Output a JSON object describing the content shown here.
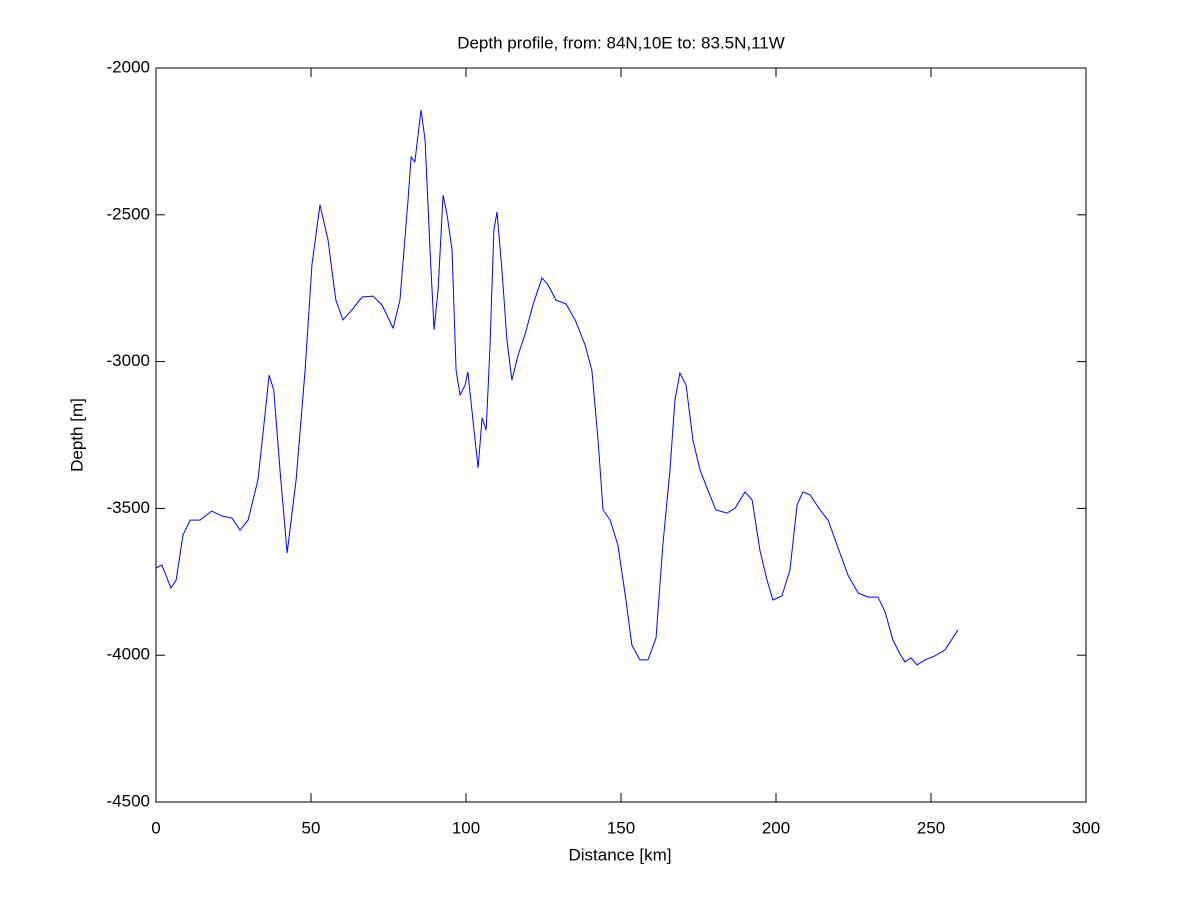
{
  "chart_data": {
    "type": "line",
    "title": "Depth profile, from: 84N,10E to: 83.5N,11W",
    "x_label": "Distance [km]",
    "y_label": "Depth [m]",
    "xlim": [
      0,
      300
    ],
    "xticks": [
      0,
      50,
      100,
      150,
      200,
      250,
      300
    ],
    "ylim": [
      -4500,
      -2000
    ],
    "yticks": [
      -4500,
      -4000,
      -3500,
      -3000,
      -2500,
      -2000
    ],
    "grid": false,
    "series": [
      {
        "name": "Depth",
        "color": "#0000ff",
        "x": [
          0,
          1.9,
          3.2,
          4.8,
          6.5,
          8.7,
          11,
          14.2,
          18,
          21.3,
          24.5,
          27.1,
          29.7,
          32.9,
          34.8,
          36.5,
          38,
          40,
          42.3,
          45.2,
          48.1,
          50.3,
          52.9,
          55.5,
          58,
          60.3,
          63.2,
          66.5,
          70,
          72.9,
          76.5,
          78.7,
          81.3,
          82.3,
          83.5,
          85.5,
          86.8,
          88.4,
          89.7,
          91,
          92.6,
          93.9,
          95.5,
          96.8,
          98.1,
          99.7,
          100.6,
          101.9,
          103.9,
          105.2,
          106.5,
          107.7,
          109,
          110,
          111.6,
          113.2,
          114.8,
          116.8,
          119,
          121.6,
          124.5,
          126.5,
          129,
          132.3,
          135.2,
          138.4,
          140.6,
          142.6,
          144.2,
          146.5,
          149,
          151.6,
          153.5,
          156.1,
          158.7,
          161.3,
          163.5,
          165.8,
          167.4,
          169,
          171,
          173.2,
          175.5,
          178,
          180.6,
          184.2,
          186.8,
          190,
          192.3,
          194.8,
          197.1,
          199,
          201.9,
          204.5,
          206.8,
          208.7,
          211,
          214.2,
          216.8,
          219.7,
          223.2,
          226.5,
          229.7,
          232.9,
          235.2,
          237.7,
          240,
          241.6,
          243.5,
          245.5,
          248.1,
          251.3,
          254.5,
          258.7
        ],
        "values": [
          -3703,
          -3693,
          -3727,
          -3771,
          -3744,
          -3591,
          -3540,
          -3540,
          -3509,
          -3526,
          -3533,
          -3574,
          -3540,
          -3403,
          -3216,
          -3046,
          -3097,
          -3369,
          -3652,
          -3403,
          -3029,
          -2671,
          -2466,
          -2586,
          -2790,
          -2858,
          -2824,
          -2780,
          -2777,
          -2807,
          -2886,
          -2790,
          -2450,
          -2303,
          -2320,
          -2143,
          -2245,
          -2620,
          -2892,
          -2756,
          -2433,
          -2500,
          -2620,
          -3029,
          -3114,
          -3080,
          -3035,
          -3165,
          -3362,
          -3192,
          -3233,
          -2960,
          -2552,
          -2490,
          -2688,
          -2926,
          -3063,
          -2978,
          -2909,
          -2807,
          -2715,
          -2739,
          -2790,
          -2804,
          -2858,
          -2943,
          -3029,
          -3267,
          -3505,
          -3540,
          -3625,
          -3812,
          -3965,
          -4016,
          -4016,
          -3941,
          -3625,
          -3369,
          -3131,
          -3039,
          -3080,
          -3267,
          -3369,
          -3437,
          -3505,
          -3516,
          -3499,
          -3444,
          -3471,
          -3642,
          -3744,
          -3812,
          -3798,
          -3710,
          -3488,
          -3444,
          -3454,
          -3505,
          -3540,
          -3625,
          -3727,
          -3788,
          -3802,
          -3802,
          -3853,
          -3948,
          -3996,
          -4023,
          -4009,
          -4033,
          -4016,
          -4002,
          -3982,
          -3914
        ]
      }
    ]
  }
}
